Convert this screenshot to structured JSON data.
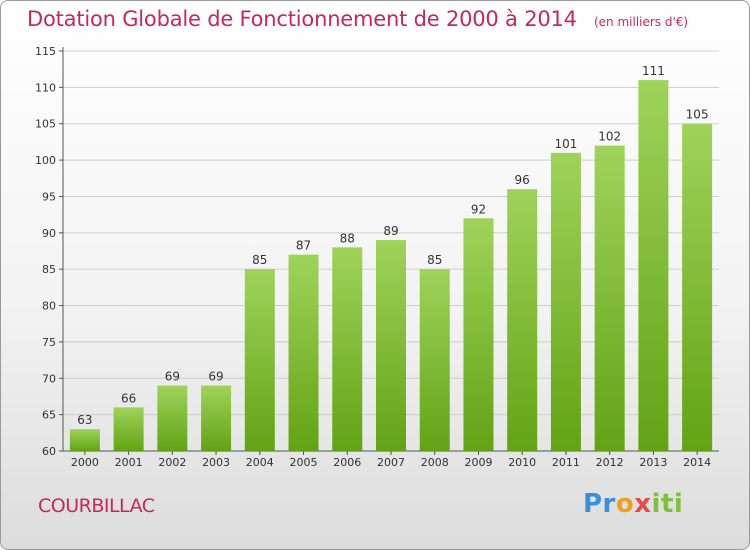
{
  "header": {
    "title": "Dotation Globale de Fonctionnement de 2000 à 2014",
    "subtitle": "(en milliers d'€)"
  },
  "footer": {
    "commune": "COURBILLAC",
    "logo": [
      "Pr",
      "o",
      "x",
      "iti"
    ]
  },
  "colors": {
    "title": "#c5285b",
    "bar_top": "#9fd35a",
    "bar_bottom": "#62a314",
    "grid": "#cfcfcf"
  },
  "chart_data": {
    "type": "bar",
    "categories": [
      "2000",
      "2001",
      "2002",
      "2003",
      "2004",
      "2005",
      "2006",
      "2007",
      "2008",
      "2009",
      "2010",
      "2011",
      "2012",
      "2013",
      "2014"
    ],
    "values": [
      63,
      66,
      69,
      69,
      85,
      87,
      88,
      89,
      85,
      92,
      96,
      101,
      102,
      111,
      105
    ],
    "ylim": [
      60,
      115
    ],
    "yticks": [
      60,
      65,
      70,
      75,
      80,
      85,
      90,
      95,
      100,
      105,
      110,
      115
    ],
    "grid": true
  }
}
